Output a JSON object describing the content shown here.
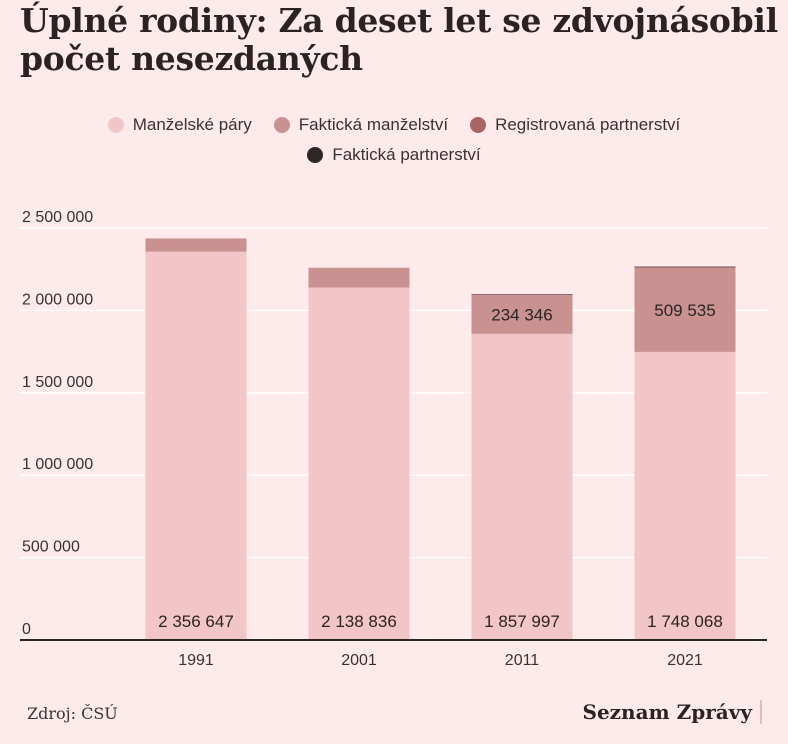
{
  "title": "Úplné rodiny: Za deset let se zdvojnásobil počet nesezdaných",
  "source": "Zdroj: ČSÚ",
  "brand": "Seznam Zprávy",
  "colors": {
    "background": "#fcebea",
    "gridline": "#ffffff",
    "axis": "#2a2423"
  },
  "chart_data": {
    "type": "bar",
    "stacked": true,
    "categories": [
      "1991",
      "2001",
      "2011",
      "2021"
    ],
    "ylim": [
      0,
      2500000
    ],
    "yticks": [
      0,
      500000,
      1000000,
      1500000,
      2000000,
      2500000
    ],
    "ytick_labels": [
      "0",
      "500 000",
      "1 000 000",
      "1 500 000",
      "2 000 000",
      "2 500 000"
    ],
    "grid": true,
    "legend_position": "top-center",
    "series": [
      {
        "name": "Manželské páry",
        "color": "#f2c6c6",
        "values": [
          2356647,
          2138836,
          1857997,
          1748068
        ],
        "labels": [
          "2 356 647",
          "2 138 836",
          "1 857 997",
          "1 748 068"
        ]
      },
      {
        "name": "Faktická manželství",
        "color": "#c99190",
        "values": [
          80000,
          120000,
          234346,
          509535
        ],
        "labels": [
          "",
          "",
          "234 346",
          "509 535"
        ]
      },
      {
        "name": "Registrovaná partnerství",
        "color": "#a86566",
        "values": [
          0,
          0,
          4000,
          5000
        ],
        "labels": [
          "",
          "",
          "",
          ""
        ]
      },
      {
        "name": "Faktická partnerství",
        "color": "#2e2726",
        "values": [
          0,
          0,
          2000,
          3000
        ],
        "labels": [
          "",
          "",
          "",
          ""
        ]
      }
    ]
  }
}
